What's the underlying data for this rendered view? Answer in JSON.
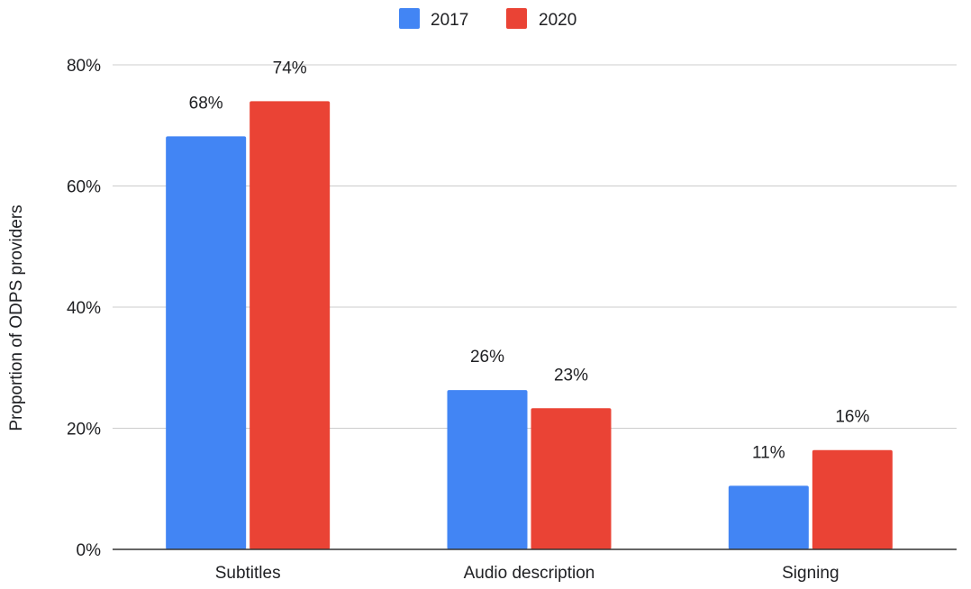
{
  "chart_data": {
    "type": "bar",
    "title": "",
    "xlabel": "",
    "ylabel": "Proportion of ODPS providers",
    "categories": [
      "Subtitles",
      "Audio description",
      "Signing"
    ],
    "series": [
      {
        "name": "2017",
        "color": "#4285f4",
        "values": [
          68.2,
          26.3,
          10.5
        ],
        "labels": [
          "68%",
          "26%",
          "11%"
        ]
      },
      {
        "name": "2020",
        "color": "#ea4335",
        "values": [
          74.0,
          23.3,
          16.4
        ],
        "labels": [
          "74%",
          "23%",
          "16%"
        ]
      }
    ],
    "ylim": [
      0,
      80
    ],
    "yticks": [
      0,
      20,
      40,
      60,
      80
    ],
    "ytick_labels": [
      "0%",
      "20%",
      "40%",
      "60%",
      "80%"
    ],
    "grid": true,
    "legend_position": "top"
  }
}
